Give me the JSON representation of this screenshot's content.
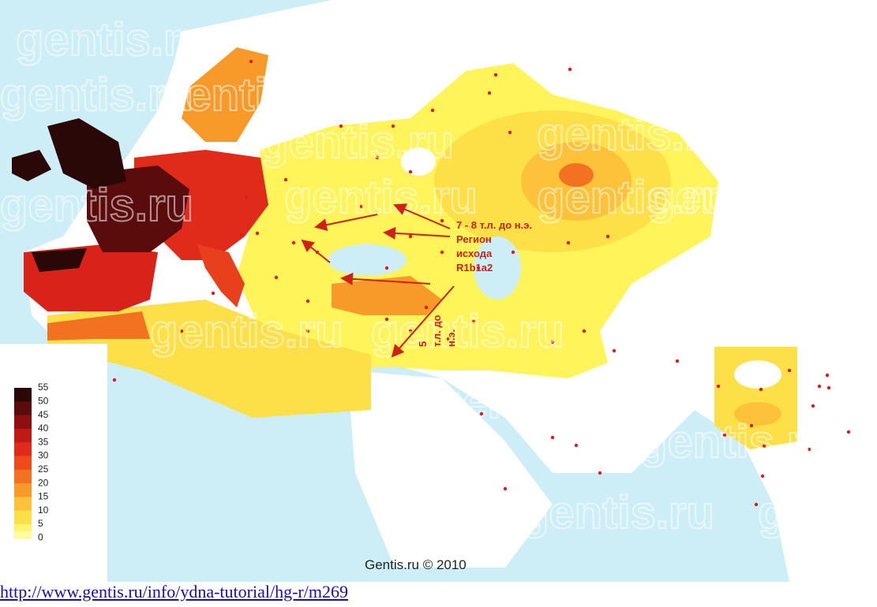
{
  "map": {
    "watermark": "gentis.ru",
    "annotations": [
      "7 - 8 т.л. до н.э.",
      "Регион",
      "исхода",
      "R1b1a2"
    ],
    "annotation_rotated": [
      "5",
      "т.л. до",
      "н.э."
    ],
    "credit": "Gentis.ru © 2010",
    "legend": {
      "labels": [
        "55",
        "50",
        "45",
        "40",
        "35",
        "30",
        "25",
        "20",
        "15",
        "10",
        "5",
        "0"
      ],
      "colors": [
        "#2a0808",
        "#5a0c0c",
        "#8c1010",
        "#c01a14",
        "#e02a1a",
        "#ee4a1a",
        "#f27222",
        "#f79a2a",
        "#fbc23a",
        "#fde048",
        "#fff46a",
        "#fffba0"
      ]
    }
  },
  "link": "http://www.gentis.ru/info/ydna-tutorial/hg-r/m269"
}
